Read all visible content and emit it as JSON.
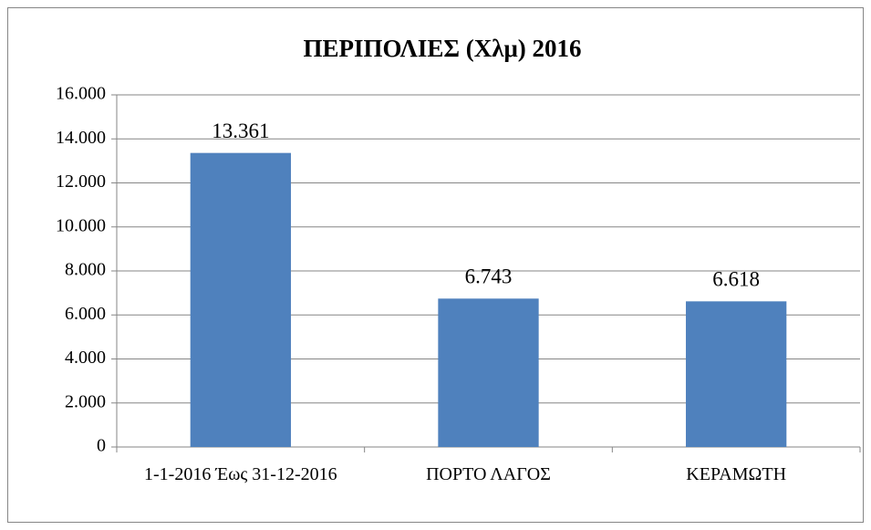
{
  "chart_data": {
    "type": "bar",
    "title": "ΠΕΡΙΠΟΛΙΕΣ (Χλμ) 2016",
    "categories": [
      "1-1-2016 Έως 31-12-2016",
      "ΠΟΡΤΟ ΛΑΓΟΣ",
      "ΚΕΡΑΜΩΤΗ"
    ],
    "values": [
      13361,
      6743,
      6618
    ],
    "value_labels": [
      "13.361",
      "6.743",
      "6.618"
    ],
    "color": "#4f81bd",
    "ylim": [
      0,
      16000
    ],
    "yticks": [
      0,
      {
        "value": 2000,
        "label": "2.000"
      },
      {
        "value": 4000,
        "label": "4.000"
      },
      {
        "value": 6000,
        "label": "6.000"
      },
      {
        "value": 8000,
        "label": "8.000"
      },
      {
        "value": 10000,
        "label": "10.000"
      },
      {
        "value": 12000,
        "label": "12.000"
      },
      {
        "value": 14000,
        "label": "14.000"
      },
      {
        "value": 16000,
        "label": "16.000"
      }
    ],
    "grid": true
  }
}
